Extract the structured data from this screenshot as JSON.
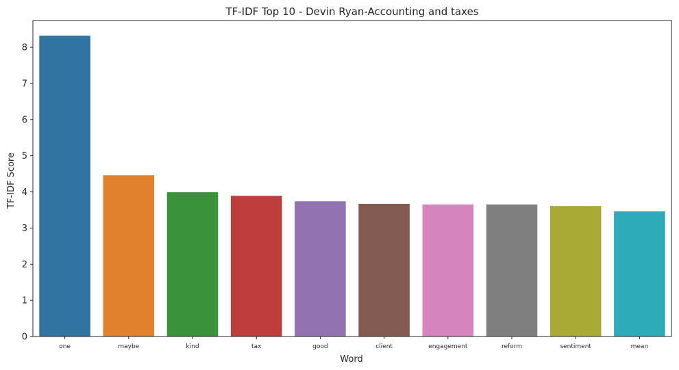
{
  "chart_data": {
    "type": "bar",
    "title": "TF-IDF Top 10 - Devin Ryan-Accounting and taxes",
    "xlabel": "Word",
    "ylabel": "TF-IDF Score",
    "categories": [
      "one",
      "maybe",
      "kind",
      "tax",
      "good",
      "client",
      "engagement",
      "reform",
      "sentiment",
      "mean"
    ],
    "values": [
      8.32,
      4.46,
      3.99,
      3.89,
      3.74,
      3.67,
      3.65,
      3.65,
      3.61,
      3.46
    ],
    "colors": [
      "#3274a1",
      "#e1812c",
      "#3a923a",
      "#c03d3e",
      "#9372b2",
      "#845b53",
      "#d684bd",
      "#7f7f7f",
      "#a9aa35",
      "#2eabb8"
    ],
    "yticks": [
      0,
      1,
      2,
      3,
      4,
      5,
      6,
      7,
      8
    ],
    "ylim": [
      0,
      8.74
    ],
    "grid": false,
    "legend": "none"
  }
}
